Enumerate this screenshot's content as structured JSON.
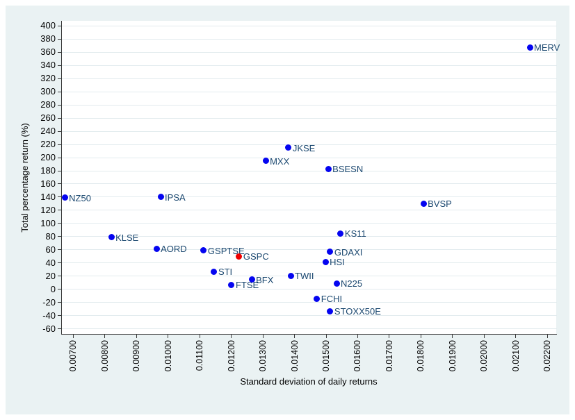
{
  "colors": {
    "canvas_background": "#eaf2f3",
    "plot_background": "#ffffff",
    "gridline": "#e2ebee",
    "axis_line": "#3a3a3a",
    "tick_mark": "#3a3a3a",
    "tick_text": "#000000",
    "marker_default": "#0505f0",
    "marker_highlight": "#f00000",
    "point_label": "#1a476f"
  },
  "chart_data": {
    "type": "scatter",
    "title": "",
    "xlabel": "Standard deviation of daily returns",
    "ylabel": "Total percentage return (%)",
    "xlim": [
      0.006626,
      0.022275
    ],
    "ylim": [
      -67.4,
      407.4
    ],
    "grid": "horizontal",
    "legend_position": "none",
    "x_tick_labels": [
      "0.00700",
      "0.00800",
      "0.00900",
      "0.01000",
      "0.01100",
      "0.01200",
      "0.01300",
      "0.01400",
      "0.01500",
      "0.01600",
      "0.01700",
      "0.01800",
      "0.01900",
      "0.02000",
      "0.02100",
      "0.02200"
    ],
    "y_tick_labels": [
      "400",
      "380",
      "360",
      "340",
      "320",
      "300",
      "280",
      "260",
      "240",
      "220",
      "200",
      "180",
      "160",
      "140",
      "120",
      "100",
      "80",
      "60",
      "40",
      "20",
      "0",
      "-20",
      "-40",
      "-60"
    ],
    "points": [
      {
        "label": "NZ50",
        "x": 0.00674,
        "y": 139
      },
      {
        "label": "KLSE",
        "x": 0.00821,
        "y": 79
      },
      {
        "label": "AORD",
        "x": 0.00964,
        "y": 62
      },
      {
        "label": "IPSA",
        "x": 0.00977,
        "y": 140
      },
      {
        "label": "GSPTSE",
        "x": 0.01113,
        "y": 59
      },
      {
        "label": "STI",
        "x": 0.01146,
        "y": 27
      },
      {
        "label": "FTSE",
        "x": 0.01201,
        "y": 7
      },
      {
        "label": "GSPC",
        "x": 0.01225,
        "y": 50,
        "highlight": true
      },
      {
        "label": "BFX",
        "x": 0.01265,
        "y": 15
      },
      {
        "label": "MXX",
        "x": 0.01309,
        "y": 195
      },
      {
        "label": "JKSE",
        "x": 0.01381,
        "y": 215
      },
      {
        "label": "TWII",
        "x": 0.01388,
        "y": 21
      },
      {
        "label": "FCHI",
        "x": 0.01471,
        "y": -14
      },
      {
        "label": "HSI",
        "x": 0.01498,
        "y": 42
      },
      {
        "label": "BSESN",
        "x": 0.01507,
        "y": 183
      },
      {
        "label": "GDAXI",
        "x": 0.01513,
        "y": 57
      },
      {
        "label": "STOXX50E",
        "x": 0.01513,
        "y": -33
      },
      {
        "label": "N225",
        "x": 0.01533,
        "y": 9
      },
      {
        "label": "KS11",
        "x": 0.01546,
        "y": 85
      },
      {
        "label": "BVSP",
        "x": 0.01808,
        "y": 130
      },
      {
        "label": "MERV",
        "x": 0.02144,
        "y": 367
      }
    ]
  }
}
